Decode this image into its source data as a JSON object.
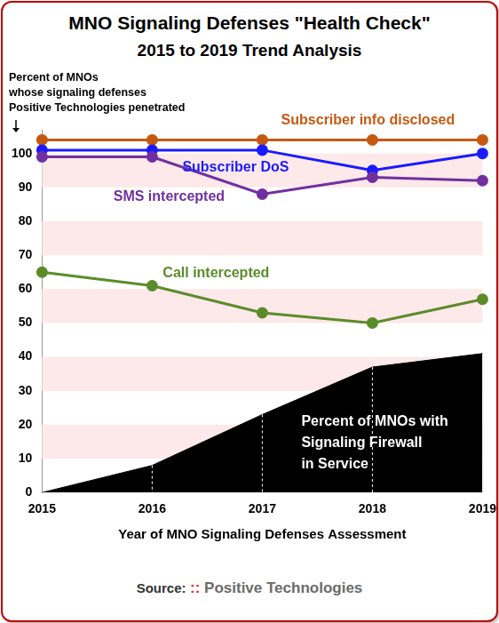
{
  "chart_data": {
    "type": "line",
    "title": "MNO Signaling Defenses \"Health Check\"",
    "subtitle": "2015 to 2019 Trend Analysis",
    "y_label": "Percent of MNOs\nwhose signaling defenses\nPositive Technologies penetrated",
    "x_label": "Year of MNO Signaling Defenses Assessment",
    "source_label": "Source:",
    "source": ":: Positive Technologies",
    "categories": [
      "2015",
      "2016",
      "2017",
      "2018",
      "2019"
    ],
    "series": [
      {
        "name": "Percent of MNOs with\nSignaling Firewall\nin Service",
        "type": "area",
        "color": "#000000",
        "values": [
          0,
          8,
          23,
          37,
          41
        ]
      },
      {
        "name": "Call intercepted",
        "type": "line",
        "marker": "circle",
        "color": "#5b8c2a",
        "values": [
          65,
          61,
          53,
          50,
          57
        ]
      },
      {
        "name": "SMS intercepted",
        "type": "line",
        "marker": "circle",
        "color": "#7030a0",
        "values": [
          99,
          99,
          88,
          93,
          92
        ]
      },
      {
        "name": "Subscriber DoS",
        "type": "line",
        "marker": "circle",
        "color": "#1a1aff",
        "values": [
          101,
          101,
          101,
          95,
          100
        ]
      },
      {
        "name": "Subscriber info disclosed",
        "type": "line",
        "marker": "circle",
        "color": "#c65911",
        "values": [
          104,
          104,
          104,
          104,
          104
        ]
      }
    ],
    "ylim": [
      0,
      107
    ],
    "yticks": [
      0,
      10,
      20,
      30,
      40,
      50,
      60,
      70,
      80,
      90,
      100
    ],
    "grid": true
  }
}
